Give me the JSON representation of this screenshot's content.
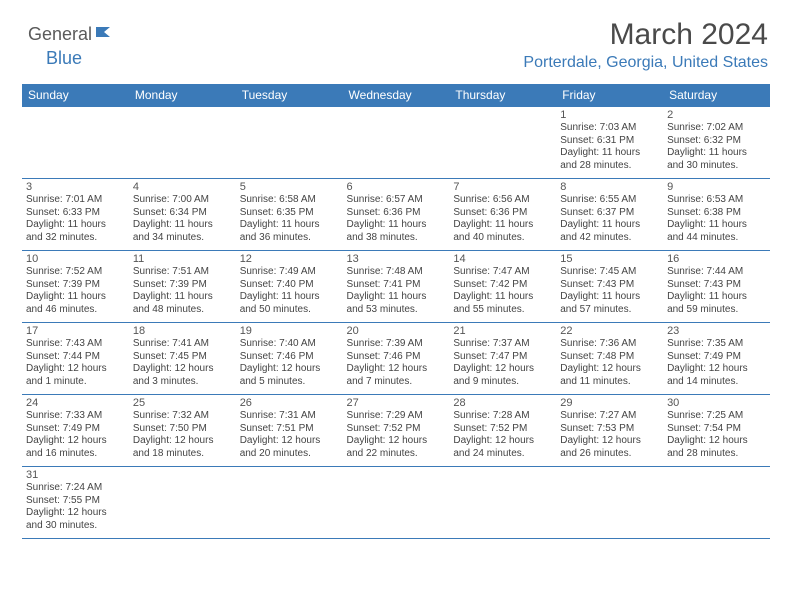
{
  "logo": {
    "text1": "General",
    "text2": "Blue"
  },
  "title": "March 2024",
  "location": "Porterdale, Georgia, United States",
  "colors": {
    "brand": "#3b7ab8",
    "heading_bg": "#3b7ab8",
    "heading_fg": "#ffffff",
    "text": "#444444",
    "title_fg": "#4a4a4a"
  },
  "weekdays": [
    "Sunday",
    "Monday",
    "Tuesday",
    "Wednesday",
    "Thursday",
    "Friday",
    "Saturday"
  ],
  "weeks": [
    [
      null,
      null,
      null,
      null,
      null,
      {
        "n": "1",
        "sr": "Sunrise: 7:03 AM",
        "ss": "Sunset: 6:31 PM",
        "dl": "Daylight: 11 hours and 28 minutes."
      },
      {
        "n": "2",
        "sr": "Sunrise: 7:02 AM",
        "ss": "Sunset: 6:32 PM",
        "dl": "Daylight: 11 hours and 30 minutes."
      }
    ],
    [
      {
        "n": "3",
        "sr": "Sunrise: 7:01 AM",
        "ss": "Sunset: 6:33 PM",
        "dl": "Daylight: 11 hours and 32 minutes."
      },
      {
        "n": "4",
        "sr": "Sunrise: 7:00 AM",
        "ss": "Sunset: 6:34 PM",
        "dl": "Daylight: 11 hours and 34 minutes."
      },
      {
        "n": "5",
        "sr": "Sunrise: 6:58 AM",
        "ss": "Sunset: 6:35 PM",
        "dl": "Daylight: 11 hours and 36 minutes."
      },
      {
        "n": "6",
        "sr": "Sunrise: 6:57 AM",
        "ss": "Sunset: 6:36 PM",
        "dl": "Daylight: 11 hours and 38 minutes."
      },
      {
        "n": "7",
        "sr": "Sunrise: 6:56 AM",
        "ss": "Sunset: 6:36 PM",
        "dl": "Daylight: 11 hours and 40 minutes."
      },
      {
        "n": "8",
        "sr": "Sunrise: 6:55 AM",
        "ss": "Sunset: 6:37 PM",
        "dl": "Daylight: 11 hours and 42 minutes."
      },
      {
        "n": "9",
        "sr": "Sunrise: 6:53 AM",
        "ss": "Sunset: 6:38 PM",
        "dl": "Daylight: 11 hours and 44 minutes."
      }
    ],
    [
      {
        "n": "10",
        "sr": "Sunrise: 7:52 AM",
        "ss": "Sunset: 7:39 PM",
        "dl": "Daylight: 11 hours and 46 minutes."
      },
      {
        "n": "11",
        "sr": "Sunrise: 7:51 AM",
        "ss": "Sunset: 7:39 PM",
        "dl": "Daylight: 11 hours and 48 minutes."
      },
      {
        "n": "12",
        "sr": "Sunrise: 7:49 AM",
        "ss": "Sunset: 7:40 PM",
        "dl": "Daylight: 11 hours and 50 minutes."
      },
      {
        "n": "13",
        "sr": "Sunrise: 7:48 AM",
        "ss": "Sunset: 7:41 PM",
        "dl": "Daylight: 11 hours and 53 minutes."
      },
      {
        "n": "14",
        "sr": "Sunrise: 7:47 AM",
        "ss": "Sunset: 7:42 PM",
        "dl": "Daylight: 11 hours and 55 minutes."
      },
      {
        "n": "15",
        "sr": "Sunrise: 7:45 AM",
        "ss": "Sunset: 7:43 PM",
        "dl": "Daylight: 11 hours and 57 minutes."
      },
      {
        "n": "16",
        "sr": "Sunrise: 7:44 AM",
        "ss": "Sunset: 7:43 PM",
        "dl": "Daylight: 11 hours and 59 minutes."
      }
    ],
    [
      {
        "n": "17",
        "sr": "Sunrise: 7:43 AM",
        "ss": "Sunset: 7:44 PM",
        "dl": "Daylight: 12 hours and 1 minute."
      },
      {
        "n": "18",
        "sr": "Sunrise: 7:41 AM",
        "ss": "Sunset: 7:45 PM",
        "dl": "Daylight: 12 hours and 3 minutes."
      },
      {
        "n": "19",
        "sr": "Sunrise: 7:40 AM",
        "ss": "Sunset: 7:46 PM",
        "dl": "Daylight: 12 hours and 5 minutes."
      },
      {
        "n": "20",
        "sr": "Sunrise: 7:39 AM",
        "ss": "Sunset: 7:46 PM",
        "dl": "Daylight: 12 hours and 7 minutes."
      },
      {
        "n": "21",
        "sr": "Sunrise: 7:37 AM",
        "ss": "Sunset: 7:47 PM",
        "dl": "Daylight: 12 hours and 9 minutes."
      },
      {
        "n": "22",
        "sr": "Sunrise: 7:36 AM",
        "ss": "Sunset: 7:48 PM",
        "dl": "Daylight: 12 hours and 11 minutes."
      },
      {
        "n": "23",
        "sr": "Sunrise: 7:35 AM",
        "ss": "Sunset: 7:49 PM",
        "dl": "Daylight: 12 hours and 14 minutes."
      }
    ],
    [
      {
        "n": "24",
        "sr": "Sunrise: 7:33 AM",
        "ss": "Sunset: 7:49 PM",
        "dl": "Daylight: 12 hours and 16 minutes."
      },
      {
        "n": "25",
        "sr": "Sunrise: 7:32 AM",
        "ss": "Sunset: 7:50 PM",
        "dl": "Daylight: 12 hours and 18 minutes."
      },
      {
        "n": "26",
        "sr": "Sunrise: 7:31 AM",
        "ss": "Sunset: 7:51 PM",
        "dl": "Daylight: 12 hours and 20 minutes."
      },
      {
        "n": "27",
        "sr": "Sunrise: 7:29 AM",
        "ss": "Sunset: 7:52 PM",
        "dl": "Daylight: 12 hours and 22 minutes."
      },
      {
        "n": "28",
        "sr": "Sunrise: 7:28 AM",
        "ss": "Sunset: 7:52 PM",
        "dl": "Daylight: 12 hours and 24 minutes."
      },
      {
        "n": "29",
        "sr": "Sunrise: 7:27 AM",
        "ss": "Sunset: 7:53 PM",
        "dl": "Daylight: 12 hours and 26 minutes."
      },
      {
        "n": "30",
        "sr": "Sunrise: 7:25 AM",
        "ss": "Sunset: 7:54 PM",
        "dl": "Daylight: 12 hours and 28 minutes."
      }
    ],
    [
      {
        "n": "31",
        "sr": "Sunrise: 7:24 AM",
        "ss": "Sunset: 7:55 PM",
        "dl": "Daylight: 12 hours and 30 minutes."
      },
      null,
      null,
      null,
      null,
      null,
      null
    ]
  ]
}
